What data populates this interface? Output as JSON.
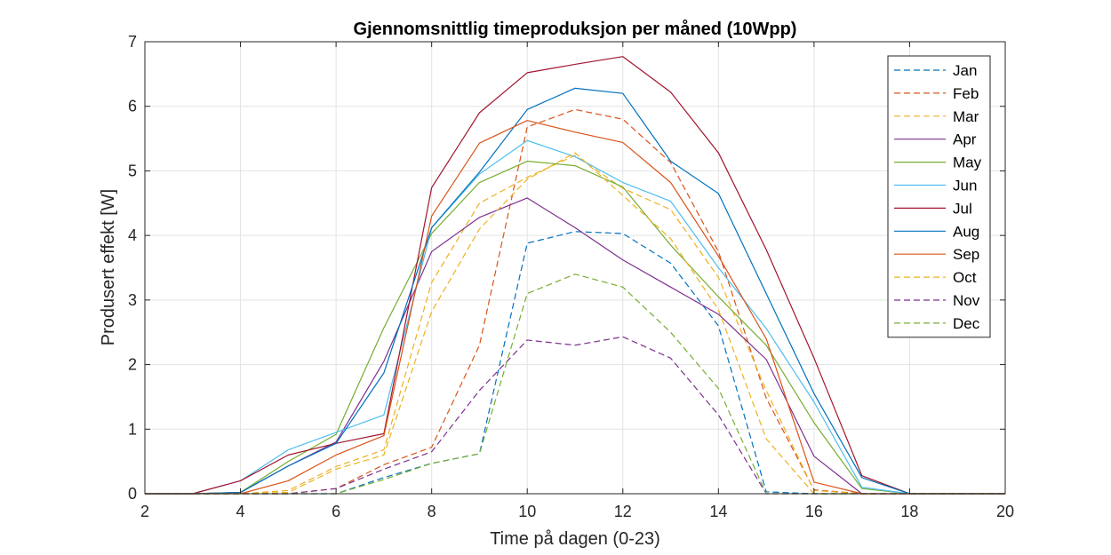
{
  "chart_data": {
    "type": "line",
    "title": "Gjennomsnittlig timeproduksjon per måned (10Wpp)",
    "xlabel": "Time på dagen (0-23)",
    "ylabel": "Produsert effekt [W]",
    "xlim": [
      2,
      20
    ],
    "ylim": [
      0,
      7
    ],
    "xticks": [
      2,
      4,
      6,
      8,
      10,
      12,
      14,
      16,
      18,
      20
    ],
    "yticks": [
      0,
      1,
      2,
      3,
      4,
      5,
      6,
      7
    ],
    "grid": true,
    "legend": "top-right",
    "x": [
      2,
      3,
      4,
      5,
      6,
      7,
      8,
      9,
      10,
      11,
      12,
      13,
      14,
      15,
      16,
      17,
      18,
      19,
      20
    ],
    "series": [
      {
        "name": "Jan",
        "color": "#0072BD",
        "dash": true,
        "values": [
          0,
          0,
          0,
          0,
          0,
          0.25,
          0.47,
          0.62,
          3.88,
          4.06,
          4.03,
          3.57,
          2.6,
          0.03,
          0,
          0,
          0,
          0,
          0
        ]
      },
      {
        "name": "Feb",
        "color": "#D95319",
        "dash": true,
        "values": [
          0,
          0,
          0,
          0,
          0.08,
          0.45,
          0.72,
          2.3,
          5.68,
          5.95,
          5.8,
          5.13,
          3.75,
          1.48,
          0.06,
          0,
          0,
          0,
          0
        ]
      },
      {
        "name": "Mar",
        "color": "#EDB120",
        "dash": true,
        "values": [
          0,
          0,
          0,
          0.05,
          0.42,
          0.68,
          3.27,
          4.5,
          4.9,
          5.24,
          4.73,
          4.4,
          3.35,
          1.6,
          0.05,
          0,
          0,
          0,
          0
        ]
      },
      {
        "name": "Apr",
        "color": "#7E2F8E",
        "dash": false,
        "values": [
          0,
          0,
          0.02,
          0.43,
          0.8,
          2.05,
          3.75,
          4.28,
          4.58,
          4.12,
          3.62,
          3.2,
          2.78,
          2.08,
          0.58,
          0,
          0,
          0,
          0
        ]
      },
      {
        "name": "May",
        "color": "#77AC30",
        "dash": false,
        "values": [
          0,
          0,
          0.02,
          0.5,
          0.92,
          2.57,
          4.03,
          4.82,
          5.15,
          5.08,
          4.75,
          3.85,
          3.05,
          2.3,
          1.1,
          0.08,
          0,
          0,
          0
        ]
      },
      {
        "name": "Jun",
        "color": "#4DBEEE",
        "dash": false,
        "values": [
          0,
          0,
          0.2,
          0.68,
          0.95,
          1.22,
          4.12,
          4.95,
          5.47,
          5.22,
          4.82,
          4.53,
          3.5,
          2.56,
          1.42,
          0.1,
          0,
          0,
          0
        ]
      },
      {
        "name": "Jul",
        "color": "#A2142F",
        "dash": false,
        "values": [
          0,
          0,
          0.2,
          0.6,
          0.78,
          0.93,
          4.74,
          5.9,
          6.52,
          6.65,
          6.77,
          6.22,
          5.28,
          3.78,
          2.1,
          0.28,
          0,
          0,
          0
        ]
      },
      {
        "name": "Aug",
        "color": "#0072BD",
        "dash": false,
        "values": [
          0,
          0,
          0.02,
          0.43,
          0.78,
          1.87,
          4.12,
          4.98,
          5.95,
          6.28,
          6.2,
          5.15,
          4.65,
          3.1,
          1.55,
          0.25,
          0,
          0,
          0
        ]
      },
      {
        "name": "Sep",
        "color": "#D95319",
        "dash": false,
        "values": [
          0,
          0,
          0,
          0.2,
          0.6,
          0.9,
          4.3,
          5.43,
          5.78,
          5.6,
          5.44,
          4.82,
          3.68,
          2.4,
          0.18,
          0,
          0,
          0,
          0
        ]
      },
      {
        "name": "Oct",
        "color": "#EDB120",
        "dash": true,
        "values": [
          0,
          0,
          0,
          0.02,
          0.38,
          0.6,
          2.82,
          4.1,
          4.87,
          5.28,
          4.62,
          3.95,
          2.85,
          0.85,
          0,
          0,
          0,
          0,
          0
        ]
      },
      {
        "name": "Nov",
        "color": "#7E2F8E",
        "dash": true,
        "values": [
          0,
          0,
          0,
          0,
          0.08,
          0.38,
          0.65,
          1.6,
          2.38,
          2.3,
          2.43,
          2.1,
          1.22,
          0,
          0,
          0,
          0,
          0,
          0
        ]
      },
      {
        "name": "Dec",
        "color": "#77AC30",
        "dash": true,
        "values": [
          0,
          0,
          0,
          0,
          0,
          0.22,
          0.47,
          0.62,
          3.1,
          3.4,
          3.2,
          2.5,
          1.63,
          0,
          0,
          0,
          0,
          0,
          0
        ]
      }
    ]
  }
}
